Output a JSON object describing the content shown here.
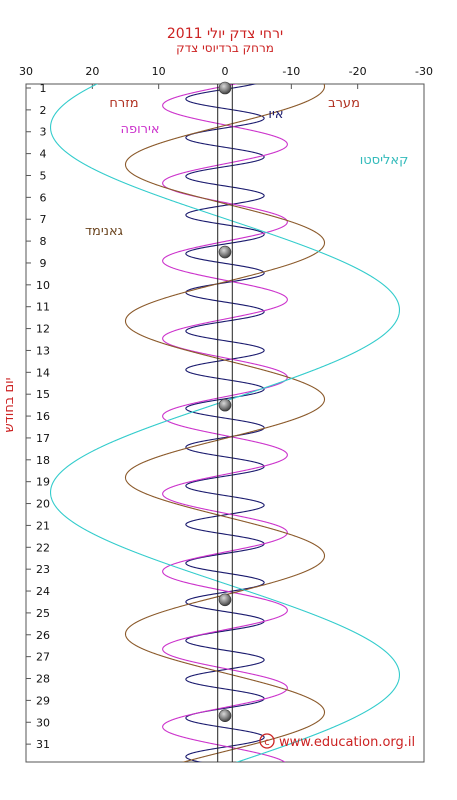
{
  "chart_data": {
    "type": "line",
    "title": "ירחי צדק יולי 2011",
    "subtitle": "מרחק ברדיוסי צדק",
    "ylabel": "יום בחודש",
    "x_ticks": [
      30,
      20,
      10,
      0,
      -10,
      -20,
      -30
    ],
    "xlim": [
      30,
      -30
    ],
    "y_ticks": [
      1,
      2,
      3,
      4,
      5,
      6,
      7,
      8,
      9,
      10,
      11,
      12,
      13,
      14,
      15,
      16,
      17,
      18,
      19,
      20,
      21,
      22,
      23,
      24,
      25,
      26,
      27,
      28,
      29,
      30,
      31
    ],
    "ylim": [
      1,
      32
    ],
    "grid": false,
    "side_labels": {
      "east": "מזרח",
      "west": "מערב"
    },
    "series": [
      {
        "name": "איו",
        "color": "#1a1a6e",
        "amplitude": 5.9,
        "period_days": 1.769,
        "phase_day": 1.5
      },
      {
        "name": "אירופה",
        "color": "#cc33cc",
        "amplitude": 9.4,
        "period_days": 3.551,
        "phase_day": 1.8
      },
      {
        "name": "גאנימד",
        "color": "#8b5a2b",
        "amplitude": 15.0,
        "period_days": 7.155,
        "phase_day": 4.5
      },
      {
        "name": "קאליסטו",
        "color": "#33cccc",
        "amplitude": 26.3,
        "period_days": 16.689,
        "phase_day": 2.8
      }
    ],
    "jupiter_days": [
      1,
      8.5,
      15.5,
      24.4,
      29.7
    ],
    "jupiter_color": "#7a7a7a"
  },
  "credit": "www.education.org.il",
  "copyright_symbol": "©"
}
